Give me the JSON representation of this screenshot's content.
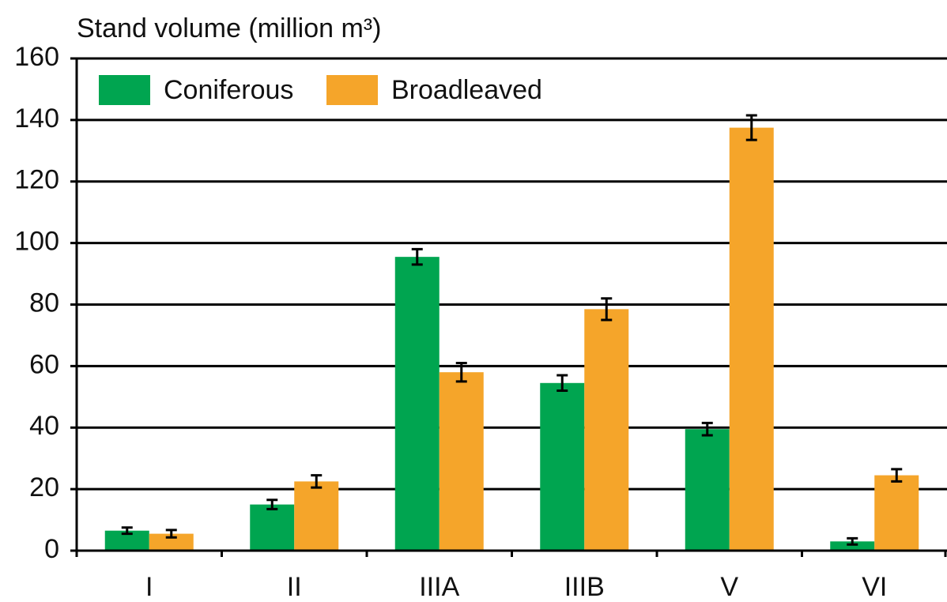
{
  "chart_data": {
    "type": "bar",
    "title": "Stand volume (million m³)",
    "categories": [
      "I",
      "II",
      "IIIA",
      "IIIB",
      "V",
      "VI"
    ],
    "series": [
      {
        "name": "Coniferous",
        "color": "#00a550",
        "values": [
          6.5,
          15,
          95.5,
          54.5,
          39.5,
          3
        ],
        "errors": [
          1,
          1.5,
          2.5,
          2.5,
          2,
          1
        ]
      },
      {
        "name": "Broadleaved",
        "color": "#f5a52a",
        "values": [
          5.5,
          22.5,
          58,
          78.5,
          137.5,
          24.5
        ],
        "errors": [
          1.2,
          2,
          3,
          3.5,
          4,
          2
        ]
      }
    ],
    "ylim": [
      0,
      160
    ],
    "yticks": [
      0,
      20,
      40,
      60,
      80,
      100,
      120,
      140,
      160
    ],
    "grid": true,
    "legend": "top-left"
  }
}
